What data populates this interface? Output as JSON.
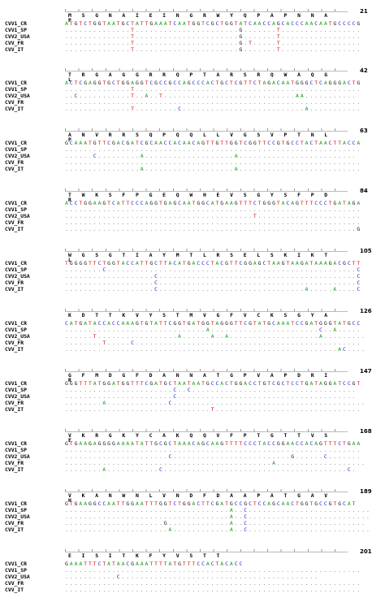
{
  "sequence_names": [
    "CVV1_CR",
    "CVV1_SP",
    "CVV2_USA",
    "CVV_FR",
    "CVV_IT"
  ],
  "colors": {
    "A": "#1a9b1a",
    "C": "#2222cc",
    "G": "#111111",
    "T": "#dd1111"
  },
  "blocks": [
    {
      "aa": "M S G N A I E I N G R W Y Q P A P N N A P",
      "end": "21",
      "ref": "ATGTCTGGTAATGCTATTGAAATCAATGGTCGCTGGTATCAACCAGCACCCAACAATGCCCCG",
      "rows": [
        "...............................................................",
        "..............T......................G.......T.................",
        "..............T......................G.......T.................",
        "..............T......................G.T.....T.................",
        "..............T......................G.......T................."
      ]
    },
    {
      "aa": "T R G A G G R R Q P T A R S R Q W A Q G L",
      "end": "42",
      "ref": "ACTCGAGGTGCTGGAGGTCGCCGCCAGCCCACTGCTCGTTCTAGACAATGGGCTCAGGGACTG",
      "rows": [
        "...............................................................",
        "..............T................................................",
        "..C...........T..A..T............................AA...........",
        "...............................................................",
        "..............T.........C..........................A..........."
      ]
    },
    {
      "aa": "A N V R R S Q P Q Q L L V G S V P T N L P",
      "end": "63",
      "ref": "GCAAATGTTCGACGATCGCAACCACAACAGTTGTTGGTCGGTTCCGTGCCTACTAACTTACCA",
      "rows": [
        "...............................................................",
        "...............................................................",
        "......C.........A...................A.........................",
        "...............................................................",
        "................A...................A.........................."
      ]
    },
    {
      "aa": "T W K S F P G E Q W H E V S G Y S F P D R",
      "end": "84",
      "ref": "ACCTGGAAGTCATTCCCAGGTGAGCAATGGCATGAAGTTTCTGGGTACAGTTTCCCTGATAGA",
      "rows": [
        "...............................................................",
        "...............................................................",
        "........................................T......................",
        "...............................................................",
        "..............................................................G"
      ]
    },
    {
      "aa": "W G S G T I A Y M T L R S E L S K I K T L",
      "end": "105",
      "ref": "TGGGGTTCTGGTACCATTGCTTACATGACCCTACGTTCGGAGCTAAGTAAGATAAAGACGCTT",
      "rows": [
        "...............................................................",
        "........C.....................................................C",
        "...................C..........................................C",
        "...................C..........................................C",
        "...................C...............................A.....A....C"
      ]
    },
    {
      "aa": "K D T T K V Y S T M V G F V C K S G Y A",
      "end": "126",
      "ref": "CATGATACCACCAAAGTGTATTCGGTGATGGTAGGGTTCGTATGCAAATCCGATGGGTATGCC",
      "rows": [
        "...............................................................",
        "..............................A.......................C..A.....",
        "......T.................A......A..A...................A.........",
        "........T.....C................................................",
        "..........................................................AC...."
      ]
    },
    {
      "aa": "G F M D G F D A N N A T G P V A P D R I R",
      "end": "147",
      "ref": "GGGTTTATGGATGGTTTCGATGCTAATAATGCCACTGGACCTGTCGCTCCTGATAGGATCCGT",
      "rows": [
        "...............................................................",
        ".......................C..C...................................",
        ".......................C......................................",
        "........A.............C.........................................",
        "...............................T..............................."
      ]
    },
    {
      "aa": "V K R G K Y C A K Q Q V F P T G T T V S E",
      "end": "168",
      "ref": "GTGAAGAGGGGAAAATATTGCGCTAAACAGCAAGTTTTCCCTACCGGAACCACAGTTTCTGAA",
      "rows": [
        "...............................................................",
        "...............................................................",
        "......................C.........................G......C.......",
        "............................................A...................",
        "........A...........C.......................................C."
      ]
    },
    {
      "aa": "V K A N W N L V N D F D A A P A T G A V H",
      "end": "189",
      "ref": "GTGAAGGCCAATTGGAATTTGGTCTGGACTTCGATGCCGCTCCAGCAACTGGTGCCGTGCAT",
      "rows": [
        "...............................................................",
        "...................................A..C..........................",
        "...................................A..C..........................",
        ".....................G.............A..C.........................",
        "......................A............A..C.........................."
      ]
    },
    {
      "aa": "E I S I T K F Y V S T T",
      "end": "201",
      "ref": "GAAATTTCTATAACGAAATTTTATGTTTCCACTACACC",
      "rows": [
        "...............................................................",
        "...............................................................",
        "...........C..........................................",
        "...............................................................",
        "..............................................................."
      ]
    }
  ]
}
